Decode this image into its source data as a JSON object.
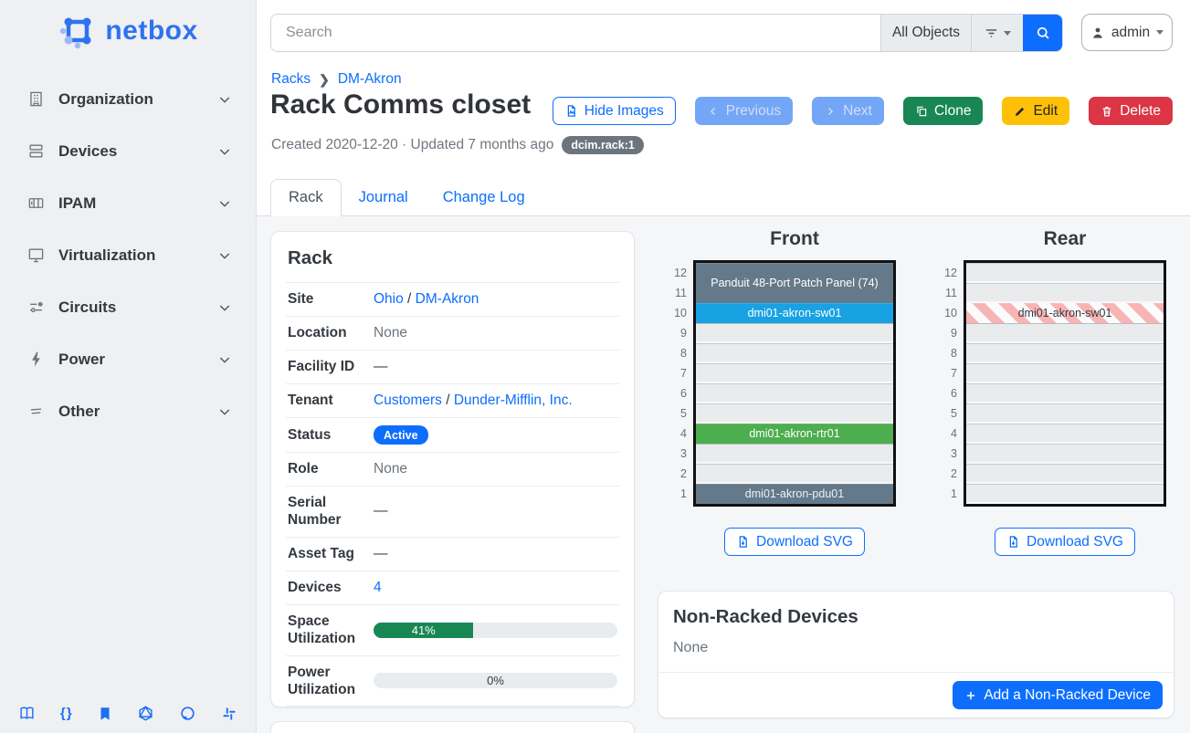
{
  "brand": {
    "name": "netbox"
  },
  "sidebar": {
    "items": [
      {
        "label": "Organization",
        "icon": "building-icon"
      },
      {
        "label": "Devices",
        "icon": "server-icon"
      },
      {
        "label": "IPAM",
        "icon": "counter-icon"
      },
      {
        "label": "Virtualization",
        "icon": "monitor-icon"
      },
      {
        "label": "Circuits",
        "icon": "transit-icon"
      },
      {
        "label": "Power",
        "icon": "lightning-icon"
      },
      {
        "label": "Other",
        "icon": "lines-icon"
      }
    ],
    "footer_icons": [
      "book-icon",
      "code-braces-icon",
      "bookmark-icon",
      "graphql-icon",
      "github-icon",
      "slack-icon"
    ]
  },
  "topbar": {
    "search_placeholder": "Search",
    "scope_label": "All Objects",
    "user": "admin"
  },
  "page": {
    "breadcrumb": [
      "Racks",
      "DM-Akron"
    ],
    "title": "Rack Comms closet",
    "meta": "Created 2020-12-20 · Updated 7 months ago",
    "object_badge": "dcim.rack:1",
    "actions": {
      "hide_images": "Hide Images",
      "previous": "Previous",
      "next": "Next",
      "clone": "Clone",
      "edit": "Edit",
      "delete": "Delete"
    }
  },
  "tabs": [
    {
      "label": "Rack",
      "active": true
    },
    {
      "label": "Journal",
      "active": false
    },
    {
      "label": "Change Log",
      "active": false
    }
  ],
  "rack_panel": {
    "title": "Rack",
    "rows": [
      {
        "label": "Site",
        "kind": "links",
        "links": [
          "Ohio",
          "DM-Akron"
        ],
        "sep": " / "
      },
      {
        "label": "Location",
        "kind": "muted",
        "value": "None"
      },
      {
        "label": "Facility ID",
        "kind": "plain",
        "value": "—"
      },
      {
        "label": "Tenant",
        "kind": "links",
        "links": [
          "Customers",
          "Dunder-Mifflin, Inc."
        ],
        "sep": " / "
      },
      {
        "label": "Status",
        "kind": "badge",
        "value": "Active",
        "color": "#0d6efd"
      },
      {
        "label": "Role",
        "kind": "muted",
        "value": "None"
      },
      {
        "label": "Serial Number",
        "kind": "plain",
        "value": "—"
      },
      {
        "label": "Asset Tag",
        "kind": "plain",
        "value": "—"
      },
      {
        "label": "Devices",
        "kind": "link",
        "value": "4"
      },
      {
        "label": "Space Utilization",
        "kind": "progress",
        "percent": 41,
        "text": "41%",
        "color": "#198754"
      },
      {
        "label": "Power Utilization",
        "kind": "progress",
        "percent": 0,
        "text": "0%",
        "color": "#198754"
      }
    ]
  },
  "elevations": {
    "units": 12,
    "front": {
      "title": "Front",
      "download_label": "Download SVG",
      "devices": [
        {
          "name": "Panduit 48-Port Patch Panel (74)",
          "top_unit": 12,
          "u_height": 2,
          "bg": "#64798a",
          "fg": "#ffffff"
        },
        {
          "name": "dmi01-akron-sw01",
          "top_unit": 10,
          "u_height": 1,
          "bg": "#18a2e4",
          "fg": "#ffffff"
        },
        {
          "name": "dmi01-akron-rtr01",
          "top_unit": 4,
          "u_height": 1,
          "bg": "#4cae4f",
          "fg": "#ffffff"
        },
        {
          "name": "dmi01-akron-pdu01",
          "top_unit": 1,
          "u_height": 1,
          "bg": "#64798a",
          "fg": "#eef2f5"
        }
      ]
    },
    "rear": {
      "title": "Rear",
      "download_label": "Download SVG",
      "devices": [
        {
          "name": "dmi01-akron-sw01",
          "top_unit": 10,
          "u_height": 1,
          "striped": true,
          "fg": "#343a40"
        }
      ]
    }
  },
  "non_racked": {
    "title": "Non-Racked Devices",
    "empty": "None",
    "add_label": "Add a Non-Racked Device"
  }
}
